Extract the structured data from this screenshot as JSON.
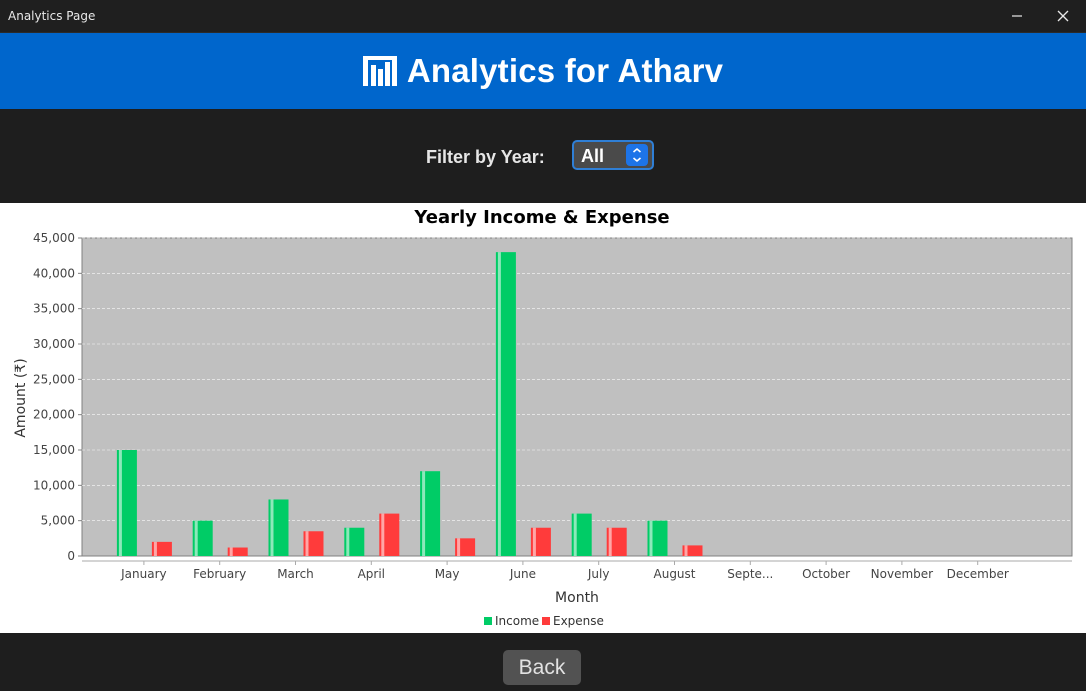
{
  "window": {
    "title": "Analytics Page"
  },
  "header": {
    "title": "Analytics for Atharv",
    "icon": "bar-chart-icon",
    "background": "#0066cc"
  },
  "filter": {
    "label": "Filter by Year:",
    "selected": "All"
  },
  "footer": {
    "back_label": "Back"
  },
  "chart_data": {
    "type": "bar",
    "title": "Yearly Income & Expense",
    "xlabel": "Month",
    "ylabel": "Amount (₹)",
    "ylim": [
      0,
      45000
    ],
    "yticks": [
      0,
      5000,
      10000,
      15000,
      20000,
      25000,
      30000,
      35000,
      40000,
      45000
    ],
    "ytick_labels": [
      "0",
      "5,000",
      "10,000",
      "15,000",
      "20,000",
      "25,000",
      "30,000",
      "35,000",
      "40,000",
      "45,000"
    ],
    "grid": true,
    "legend_position": "bottom",
    "plot_background": "#c0c0c0",
    "categories": [
      "January",
      "February",
      "March",
      "April",
      "May",
      "June",
      "July",
      "August",
      "September",
      "October",
      "November",
      "December"
    ],
    "category_labels": [
      "January",
      "February",
      "March",
      "April",
      "May",
      "June",
      "July",
      "August",
      "Septe...",
      "October",
      "November",
      "December"
    ],
    "series": [
      {
        "name": "Income",
        "color": "#00cc66",
        "values": [
          15000,
          5000,
          8000,
          4000,
          12000,
          43000,
          6000,
          5000,
          0,
          0,
          0,
          0
        ]
      },
      {
        "name": "Expense",
        "color": "#ff3b3b",
        "values": [
          2000,
          1200,
          3500,
          6000,
          2500,
          4000,
          4000,
          1500,
          0,
          0,
          0,
          0
        ]
      }
    ]
  }
}
